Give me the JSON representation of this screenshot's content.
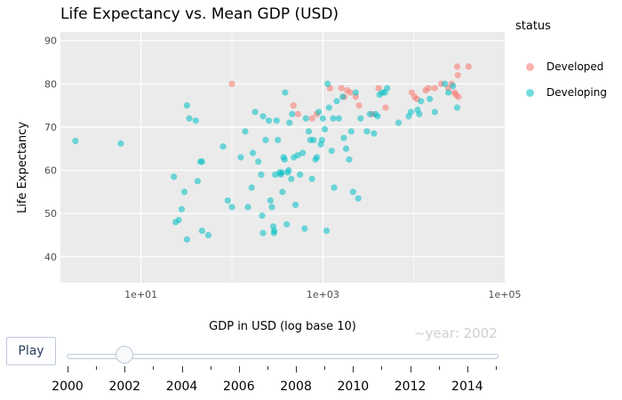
{
  "chart_data": {
    "type": "scatter",
    "title": "Life Expectancy vs. Mean GDP (USD)",
    "xlabel": "GDP in USD (log base 10)",
    "ylabel": "Life Expectancy",
    "xscale": "log",
    "xlim": [
      1.3,
      100000
    ],
    "ylim": [
      34,
      92
    ],
    "xticks": [
      {
        "value": 10,
        "label": "1e+01"
      },
      {
        "value": 1000,
        "label": "1e+03"
      },
      {
        "value": 100000,
        "label": "1e+05"
      }
    ],
    "yticks": [
      40,
      50,
      60,
      70,
      80,
      90
    ],
    "grid": true,
    "legend": {
      "title": "status",
      "placement": "right"
    },
    "series": [
      {
        "name": "Developed",
        "color": "#F8766D",
        "points": [
          [
            100,
            80
          ],
          [
            475,
            75
          ],
          [
            533,
            73
          ],
          [
            760,
            72
          ],
          [
            857,
            73
          ],
          [
            1200,
            79
          ],
          [
            1600,
            79
          ],
          [
            1720,
            77
          ],
          [
            1850,
            78.5
          ],
          [
            2000,
            78
          ],
          [
            2300,
            77
          ],
          [
            2500,
            75
          ],
          [
            3500,
            73
          ],
          [
            4100,
            79
          ],
          [
            4900,
            74.5
          ],
          [
            9500,
            78
          ],
          [
            10200,
            77
          ],
          [
            10800,
            76.5
          ],
          [
            13500,
            78.5
          ],
          [
            14500,
            79
          ],
          [
            17000,
            79
          ],
          [
            20000,
            80
          ],
          [
            24000,
            79
          ],
          [
            26000,
            80
          ],
          [
            28000,
            78
          ],
          [
            29000,
            77.5
          ],
          [
            30000,
            84
          ],
          [
            30500,
            82
          ],
          [
            31000,
            77
          ],
          [
            40000,
            84
          ]
        ]
      },
      {
        "name": "Developing",
        "color": "#00BFC4",
        "points": [
          [
            1.9,
            66.8
          ],
          [
            6,
            66.2
          ],
          [
            32,
            75
          ],
          [
            23,
            58.5
          ],
          [
            24,
            48
          ],
          [
            26,
            48.5
          ],
          [
            28,
            51
          ],
          [
            30,
            55
          ],
          [
            32,
            44
          ],
          [
            34,
            72
          ],
          [
            40,
            71.5
          ],
          [
            42,
            57.5
          ],
          [
            45,
            62
          ],
          [
            47,
            62
          ],
          [
            47,
            46
          ],
          [
            55,
            45
          ],
          [
            80,
            65.5
          ],
          [
            90,
            53
          ],
          [
            100,
            51.5
          ],
          [
            125,
            63
          ],
          [
            140,
            69
          ],
          [
            150,
            51.5
          ],
          [
            165,
            56
          ],
          [
            170,
            64
          ],
          [
            180,
            73.5
          ],
          [
            195,
            62
          ],
          [
            220,
            45.5
          ],
          [
            215,
            49.5
          ],
          [
            210,
            59
          ],
          [
            220,
            72.5
          ],
          [
            235,
            67
          ],
          [
            255,
            71.5
          ],
          [
            265,
            53
          ],
          [
            275,
            51.5
          ],
          [
            285,
            47
          ],
          [
            292,
            46
          ],
          [
            290,
            45.5
          ],
          [
            300,
            59
          ],
          [
            310,
            71.5
          ],
          [
            320,
            67
          ],
          [
            335,
            59.5
          ],
          [
            345,
            59
          ],
          [
            355,
            59.5
          ],
          [
            360,
            55
          ],
          [
            370,
            63
          ],
          [
            380,
            62.5
          ],
          [
            385,
            78
          ],
          [
            400,
            47.5
          ],
          [
            410,
            59.5
          ],
          [
            420,
            60
          ],
          [
            430,
            71
          ],
          [
            450,
            58
          ],
          [
            460,
            73
          ],
          [
            480,
            63
          ],
          [
            500,
            52
          ],
          [
            530,
            63.5
          ],
          [
            560,
            59
          ],
          [
            600,
            64
          ],
          [
            630,
            46.5
          ],
          [
            650,
            72
          ],
          [
            700,
            69
          ],
          [
            730,
            67
          ],
          [
            760,
            58
          ],
          [
            790,
            67
          ],
          [
            830,
            62.5
          ],
          [
            860,
            63
          ],
          [
            900,
            73.5
          ],
          [
            950,
            66
          ],
          [
            980,
            67
          ],
          [
            1000,
            72
          ],
          [
            1050,
            69.5
          ],
          [
            1100,
            46
          ],
          [
            1130,
            80
          ],
          [
            1170,
            74.5
          ],
          [
            1250,
            64.5
          ],
          [
            1300,
            72
          ],
          [
            1330,
            56
          ],
          [
            1420,
            76
          ],
          [
            1500,
            72
          ],
          [
            1650,
            77
          ],
          [
            1700,
            67.5
          ],
          [
            1800,
            65
          ],
          [
            1950,
            62.5
          ],
          [
            2050,
            69
          ],
          [
            2150,
            55
          ],
          [
            2300,
            78
          ],
          [
            2450,
            53.5
          ],
          [
            2600,
            72
          ],
          [
            3050,
            69
          ],
          [
            3300,
            73
          ],
          [
            3650,
            68.5
          ],
          [
            3800,
            73
          ],
          [
            4000,
            72.5
          ],
          [
            4200,
            77.5
          ],
          [
            4500,
            78
          ],
          [
            4800,
            78
          ],
          [
            5100,
            79
          ],
          [
            6800,
            71
          ],
          [
            8800,
            72.5
          ],
          [
            9300,
            73.5
          ],
          [
            11000,
            74
          ],
          [
            11500,
            73
          ],
          [
            12000,
            76
          ],
          [
            15000,
            76.5
          ],
          [
            17000,
            73.5
          ],
          [
            22000,
            80
          ],
          [
            24000,
            78
          ],
          [
            30000,
            74.5
          ],
          [
            27000,
            79.5
          ]
        ]
      }
    ]
  },
  "controls": {
    "play_label": "Play",
    "year_prefix": "~year: ",
    "current_year": 2002,
    "year_display": "~year: 2002",
    "slider_start": 2000,
    "slider_end": 2015,
    "slider_labels": [
      "2000",
      "2002",
      "2004",
      "2006",
      "2008",
      "2010",
      "2012",
      "2014"
    ]
  }
}
